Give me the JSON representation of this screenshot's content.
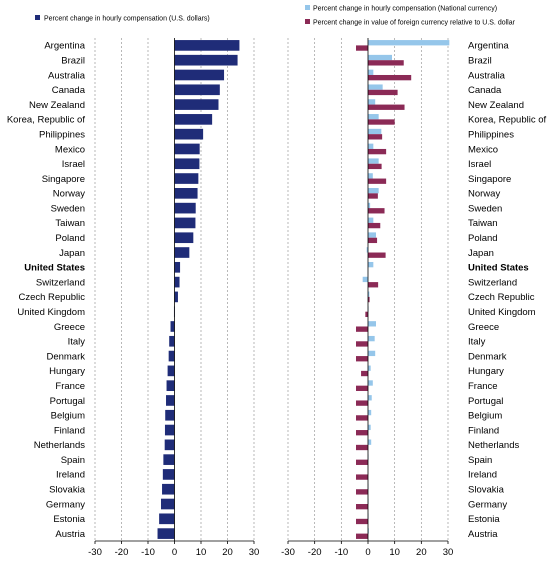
{
  "colors": {
    "navy": "#1F2C78",
    "light_blue": "#95C6EA",
    "maroon": "#8B2A56",
    "grid": "#9A9A9A",
    "axis": "#000000"
  },
  "chart_data": [
    {
      "type": "bar",
      "orientation": "horizontal",
      "xlim": [
        -30,
        30
      ],
      "xticks": [
        "-30",
        "-20",
        "-10",
        "0",
        "10",
        "20",
        "30"
      ],
      "grid": true,
      "legend_position": "top-left",
      "categories": [
        "Argentina",
        "Brazil",
        "Australia",
        "Canada",
        "New Zealand",
        "Korea, Republic of",
        "Philippines",
        "Mexico",
        "Israel",
        "Singapore",
        "Norway",
        "Sweden",
        "Taiwan",
        "Poland",
        "Japan",
        "United States",
        "Switzerland",
        "Czech Republic",
        "United Kingdom",
        "Greece",
        "Italy",
        "Denmark",
        "Hungary",
        "France",
        "Portugal",
        "Belgium",
        "Finland",
        "Netherlands",
        "Spain",
        "Ireland",
        "Slovakia",
        "Germany",
        "Estonia",
        "Austria"
      ],
      "series": [
        {
          "name": "Percent change in hourly compensation (U.S. dollars)",
          "color": "#1F2C78",
          "values": [
            24.5,
            23.8,
            18.7,
            17.1,
            16.6,
            14.2,
            10.8,
            9.5,
            9.4,
            9.0,
            8.7,
            8.0,
            7.9,
            7.1,
            5.6,
            2.1,
            1.9,
            1.3,
            -0.2,
            -1.5,
            -2.0,
            -2.2,
            -2.6,
            -3.0,
            -3.2,
            -3.5,
            -3.6,
            -3.7,
            -4.2,
            -4.4,
            -4.7,
            -5.1,
            -5.8,
            -6.4
          ]
        }
      ]
    },
    {
      "type": "bar",
      "orientation": "horizontal",
      "xlim": [
        -30,
        30
      ],
      "xticks": [
        "-30",
        "-20",
        "-10",
        "0",
        "10",
        "20",
        "30"
      ],
      "grid": true,
      "legend_position": "top-left",
      "categories": [
        "Argentina",
        "Brazil",
        "Australia",
        "Canada",
        "New Zealand",
        "Korea, Republic of",
        "Philippines",
        "Mexico",
        "Israel",
        "Singapore",
        "Norway",
        "Sweden",
        "Taiwan",
        "Poland",
        "Japan",
        "United States",
        "Switzerland",
        "Czech Republic",
        "United Kingdom",
        "Greece",
        "Italy",
        "Denmark",
        "Hungary",
        "France",
        "Portugal",
        "Belgium",
        "Finland",
        "Netherlands",
        "Spain",
        "Ireland",
        "Slovakia",
        "Germany",
        "Estonia",
        "Austria"
      ],
      "series": [
        {
          "name": "Percent change in hourly compensation (National currency)",
          "color": "#95C6EA",
          "values": [
            30.5,
            9.0,
            2.0,
            5.5,
            2.7,
            4.0,
            5.0,
            2.0,
            4.0,
            1.8,
            4.0,
            0.8,
            2.0,
            3.0,
            -0.5,
            2.0,
            -2.0,
            0.5,
            0.2,
            3.0,
            2.5,
            2.7,
            1.0,
            1.8,
            1.4,
            1.2,
            1.0,
            1.2,
            0.2,
            0.0,
            0.1,
            0.2,
            0.2,
            0.3
          ]
        },
        {
          "name": "Percent change in value of foreign currency relative to U.S. dollar",
          "color": "#8B2A56",
          "values": [
            -4.5,
            13.4,
            16.2,
            11.1,
            13.7,
            10.0,
            5.3,
            6.8,
            5.1,
            6.8,
            3.7,
            6.2,
            4.6,
            3.4,
            6.6,
            0.0,
            3.8,
            0.6,
            -1.0,
            -4.5,
            -4.5,
            -4.5,
            -2.6,
            -4.5,
            -4.5,
            -4.5,
            -4.5,
            -4.5,
            -4.5,
            -4.5,
            -4.5,
            -4.5,
            -4.5,
            -4.5
          ]
        }
      ]
    }
  ]
}
